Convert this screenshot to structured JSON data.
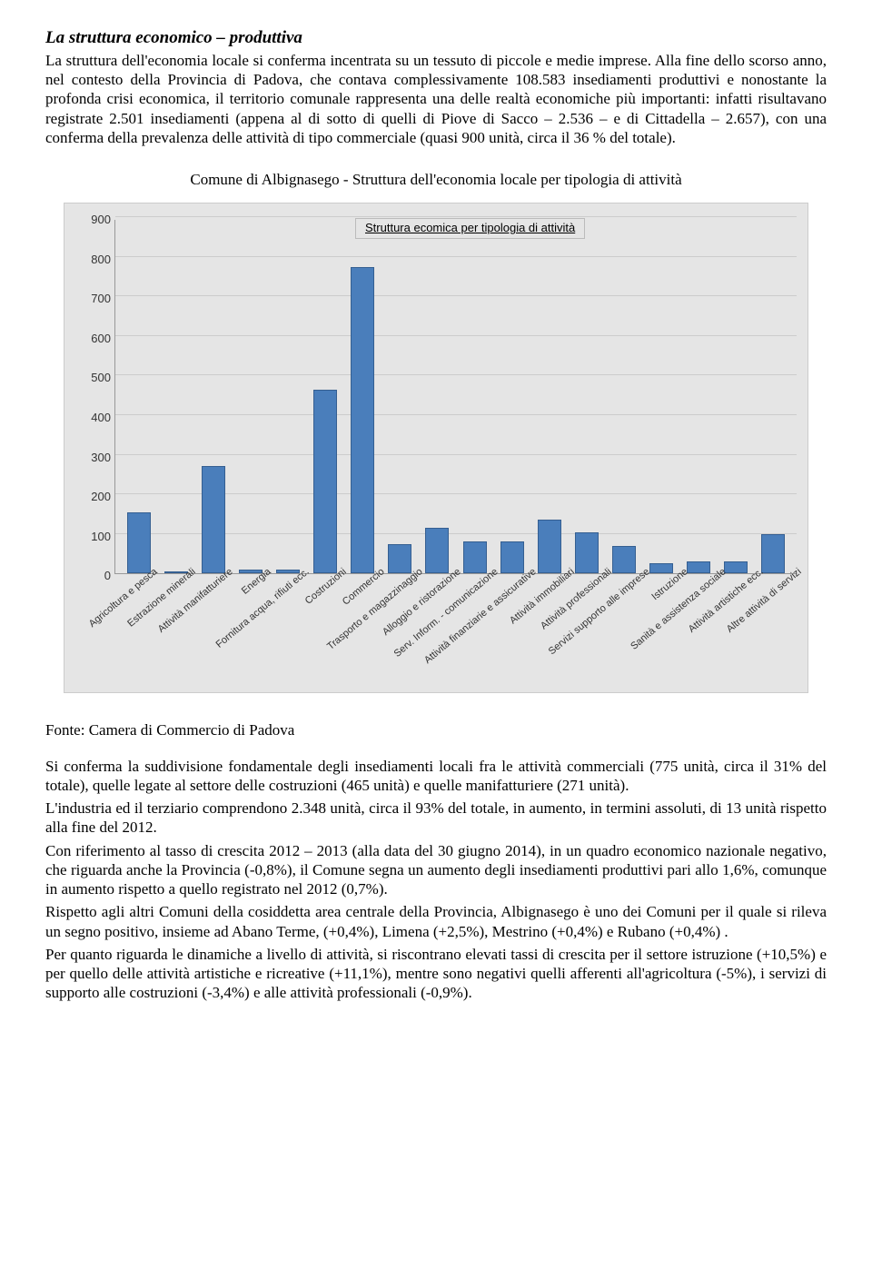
{
  "title": "La struttura economico – produttiva",
  "para1": "La struttura dell'economia locale si conferma incentrata su un tessuto di piccole e medie imprese. Alla fine dello scorso anno, nel contesto della Provincia di Padova, che contava complessivamente 108.583 insediamenti produttivi e nonostante la profonda crisi economica, il territorio comunale rappresenta una delle realtà economiche più importanti: infatti risultavano registrate 2.501 insediamenti (appena al  di sotto di quelli di Piove di Sacco – 2.536 – e di Cittadella – 2.657), con una conferma della prevalenza delle attività di tipo commerciale (quasi 900 unità, circa il 36 % del totale).",
  "chart_caption": "Comune di Albignasego - Struttura dell'economia locale per tipologia di attività",
  "source": "Fonte: Camera di Commercio di Padova",
  "para2": "Si conferma la suddivisione fondamentale degli insediamenti locali fra le attività commerciali (775 unità, circa il 31% del totale), quelle legate al settore delle costruzioni (465 unità) e quelle manifatturiere (271 unità).",
  "para3": "L'industria ed il terziario comprendono 2.348 unità, circa il 93% del totale, in aumento, in termini assoluti, di 13 unità rispetto alla fine del 2012.",
  "para4": "Con riferimento al tasso di crescita 2012 – 2013 (alla data del 30 giugno 2014), in un quadro economico nazionale negativo, che riguarda anche la Provincia (-0,8%), il Comune segna un aumento degli insediamenti produttivi pari allo 1,6%, comunque in aumento rispetto a quello registrato nel 2012 (0,7%).",
  "para5": "Rispetto agli altri Comuni della cosiddetta area centrale della Provincia, Albignasego è uno dei Comuni per il quale si rileva un segno positivo, insieme ad Abano Terme, (+0,4%), Limena (+2,5%), Mestrino (+0,4%) e Rubano (+0,4%) .",
  "para6": "Per quanto riguarda le dinamiche a livello di attività, si riscontrano elevati tassi di crescita per il settore istruzione (+10,5%) e per quello delle attività artistiche e ricreative (+11,1%), mentre sono negativi quelli afferenti all'agricoltura (-5%), i servizi di supporto alle costruzioni (-3,4%) e alle attività professionali  (-0,9%).",
  "chart": {
    "type": "bar",
    "legend_label": "Struttura ecomica per tipologia di attività",
    "bar_color": "#4a7ebb",
    "bar_border_color": "#355f91",
    "background_color": "#e5e5e5",
    "grid_color": "#cccccc",
    "ylim": [
      0,
      900
    ],
    "ytick_step": 100,
    "yticks": [
      0,
      100,
      200,
      300,
      400,
      500,
      600,
      700,
      800,
      900
    ],
    "categories": [
      "Agricoltura e pesca",
      "Estrazione minerali",
      "Attività manifatturiere",
      "Energia",
      "Fornitura acqua, rifiuti ecc.",
      "Costruzioni",
      "Commercio",
      "Trasporto e magazzinaggio",
      "Alloggio e ristorazione",
      "Serv. Inform. - comunicazione",
      "Attività finanziarie e assicurative",
      "Attività immobiliari",
      "Attività professionali",
      "Servizi supporto alle imprese",
      "Istruzione",
      "Sanità e assistenza sociale",
      "Attività artistiche ecc.",
      "Altre attività di servizi"
    ],
    "values": [
      155,
      1,
      271,
      9,
      9,
      465,
      775,
      75,
      115,
      80,
      80,
      135,
      105,
      70,
      25,
      30,
      30,
      100
    ]
  }
}
